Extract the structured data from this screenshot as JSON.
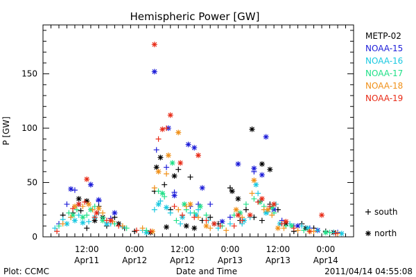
{
  "chart_data": {
    "type": "scatter",
    "title": "Hemispheric Power [GW]",
    "xlabel": "Date and Time",
    "ylabel": "P [GW]",
    "ylim": [
      0,
      195
    ],
    "y_ticks": [
      0,
      50,
      100,
      150
    ],
    "y_minor_step": 10,
    "xlim": [
      "2011-04-11T01:00",
      "2011-04-14T07:00"
    ],
    "x_ticks": [
      {
        "t": "2011-04-11T12:00",
        "line1": "12:00",
        "line2": "Apr11"
      },
      {
        "t": "2011-04-12T00:00",
        "line1": "0:00",
        "line2": "Apr12"
      },
      {
        "t": "2011-04-12T12:00",
        "line1": "12:00",
        "line2": "Apr12"
      },
      {
        "t": "2011-04-13T00:00",
        "line1": "0:00",
        "line2": "Apr13"
      },
      {
        "t": "2011-04-13T12:00",
        "line1": "12:00",
        "line2": "Apr13"
      },
      {
        "t": "2011-04-14T00:00",
        "line1": "0:00",
        "line2": "Apr14"
      }
    ],
    "x_minor_hours": 2,
    "grid": false,
    "legend_position": "right",
    "marker_legend": [
      {
        "symbol": "+",
        "label": "south"
      },
      {
        "symbol": "*",
        "label": "north"
      }
    ],
    "series": [
      {
        "name": "METP-02",
        "color": "#000000",
        "south": [
          [
            "2011-04-11T06:00",
            20
          ],
          [
            "2011-04-11T08:30",
            22
          ],
          [
            "2011-04-11T10:30",
            24
          ],
          [
            "2011-04-11T12:00",
            8
          ],
          [
            "2011-04-11T15:00",
            28
          ],
          [
            "2011-04-11T17:00",
            10
          ],
          [
            "2011-04-11T19:00",
            18
          ],
          [
            "2011-04-11T21:30",
            8
          ],
          [
            "2011-04-12T00:00",
            5
          ],
          [
            "2011-04-12T05:00",
            42
          ],
          [
            "2011-04-12T07:30",
            48
          ],
          [
            "2011-04-12T09:00",
            25
          ],
          [
            "2011-04-12T11:00",
            62
          ],
          [
            "2011-04-12T14:00",
            55
          ],
          [
            "2011-04-12T17:00",
            15
          ],
          [
            "2011-04-12T19:00",
            18
          ],
          [
            "2011-04-12T21:00",
            12
          ],
          [
            "2011-04-13T00:00",
            45
          ],
          [
            "2011-04-13T02:30",
            15
          ],
          [
            "2011-04-13T04:00",
            25
          ],
          [
            "2011-04-13T06:00",
            18
          ],
          [
            "2011-04-13T08:00",
            15
          ],
          [
            "2011-04-13T10:00",
            30
          ],
          [
            "2011-04-13T12:00",
            25
          ],
          [
            "2011-04-13T16:00",
            5
          ],
          [
            "2011-04-13T18:00",
            12
          ],
          [
            "2011-04-13T21:00",
            8
          ],
          [
            "2011-04-14T00:00",
            5
          ]
        ],
        "north": [
          [
            "2011-04-11T10:00",
            35
          ],
          [
            "2011-04-11T12:00",
            33
          ],
          [
            "2011-04-11T14:00",
            15
          ],
          [
            "2011-04-11T16:00",
            18
          ],
          [
            "2011-04-11T20:00",
            12
          ],
          [
            "2011-04-12T04:00",
            4
          ],
          [
            "2011-04-12T05:30",
            64
          ],
          [
            "2011-04-12T06:30",
            73
          ],
          [
            "2011-04-12T08:00",
            9
          ],
          [
            "2011-04-12T10:00",
            56
          ],
          [
            "2011-04-12T13:00",
            10
          ],
          [
            "2011-04-12T15:00",
            8
          ],
          [
            "2011-04-13T00:30",
            42
          ],
          [
            "2011-04-13T02:00",
            35
          ],
          [
            "2011-04-13T05:30",
            99
          ],
          [
            "2011-04-13T08:00",
            67
          ],
          [
            "2011-04-13T10:00",
            62
          ],
          [
            "2011-04-13T14:00",
            12
          ],
          [
            "2011-04-13T19:00",
            8
          ],
          [
            "2011-04-14T02:00",
            4
          ]
        ]
      },
      {
        "name": "NOAA-15",
        "color": "#1c1cd8",
        "south": [
          [
            "2011-04-11T05:00",
            12
          ],
          [
            "2011-04-11T07:00",
            30
          ],
          [
            "2011-04-11T09:00",
            43
          ],
          [
            "2011-04-11T13:00",
            48
          ],
          [
            "2011-04-11T15:00",
            33
          ],
          [
            "2011-04-11T18:00",
            17
          ],
          [
            "2011-04-12T05:30",
            80
          ],
          [
            "2011-04-12T08:00",
            64
          ],
          [
            "2011-04-12T10:00",
            41
          ],
          [
            "2011-04-12T14:00",
            28
          ],
          [
            "2011-04-12T16:00",
            30
          ],
          [
            "2011-04-12T19:00",
            30
          ],
          [
            "2011-04-13T00:00",
            18
          ],
          [
            "2011-04-13T06:00",
            60
          ],
          [
            "2011-04-13T07:30",
            33
          ],
          [
            "2011-04-13T10:00",
            28
          ],
          [
            "2011-04-13T13:00",
            15
          ],
          [
            "2011-04-13T16:00",
            10
          ],
          [
            "2011-04-13T20:00",
            8
          ],
          [
            "2011-04-14T03:00",
            4
          ]
        ],
        "north": [
          [
            "2011-04-11T08:00",
            44
          ],
          [
            "2011-04-11T10:00",
            30
          ],
          [
            "2011-04-11T13:00",
            48
          ],
          [
            "2011-04-11T15:00",
            34
          ],
          [
            "2011-04-11T19:00",
            22
          ],
          [
            "2011-04-12T05:00",
            152
          ],
          [
            "2011-04-12T08:30",
            100
          ],
          [
            "2011-04-12T10:00",
            38
          ],
          [
            "2011-04-12T13:30",
            85
          ],
          [
            "2011-04-12T15:00",
            82
          ],
          [
            "2011-04-12T17:00",
            45
          ],
          [
            "2011-04-12T22:00",
            14
          ],
          [
            "2011-04-13T02:00",
            67
          ],
          [
            "2011-04-13T06:00",
            63
          ],
          [
            "2011-04-13T08:00",
            57
          ],
          [
            "2011-04-13T09:00",
            92
          ],
          [
            "2011-04-13T11:00",
            25
          ],
          [
            "2011-04-13T17:00",
            10
          ],
          [
            "2011-04-13T22:00",
            6
          ]
        ]
      },
      {
        "name": "NOAA-16",
        "color": "#18c8e0",
        "south": [
          [
            "2011-04-11T04:00",
            8
          ],
          [
            "2011-04-11T06:00",
            16
          ],
          [
            "2011-04-11T08:00",
            18
          ],
          [
            "2011-04-11T10:00",
            20
          ],
          [
            "2011-04-11T12:30",
            14
          ],
          [
            "2011-04-11T15:00",
            22
          ],
          [
            "2011-04-11T18:00",
            12
          ],
          [
            "2011-04-11T21:00",
            9
          ],
          [
            "2011-04-12T02:00",
            6
          ],
          [
            "2011-04-12T05:00",
            25
          ],
          [
            "2011-04-12T06:30",
            33
          ],
          [
            "2011-04-12T09:00",
            22
          ],
          [
            "2011-04-12T11:30",
            12
          ],
          [
            "2011-04-12T14:00",
            22
          ],
          [
            "2011-04-12T16:00",
            25
          ],
          [
            "2011-04-12T18:30",
            15
          ],
          [
            "2011-04-12T21:00",
            8
          ],
          [
            "2011-04-13T00:00",
            12
          ],
          [
            "2011-04-13T03:00",
            12
          ],
          [
            "2011-04-13T05:00",
            18
          ],
          [
            "2011-04-13T07:00",
            40
          ],
          [
            "2011-04-13T09:30",
            23
          ],
          [
            "2011-04-13T11:30",
            30
          ],
          [
            "2011-04-13T15:00",
            12
          ],
          [
            "2011-04-13T18:00",
            10
          ],
          [
            "2011-04-13T22:00",
            6
          ],
          [
            "2011-04-14T02:00",
            4
          ]
        ],
        "north": [
          [
            "2011-04-11T07:00",
            12
          ],
          [
            "2011-04-11T09:00",
            15
          ],
          [
            "2011-04-11T11:00",
            13
          ],
          [
            "2011-04-11T14:00",
            18
          ],
          [
            "2011-04-11T17:00",
            12
          ],
          [
            "2011-04-12T03:00",
            4
          ],
          [
            "2011-04-12T06:00",
            30
          ],
          [
            "2011-04-12T08:00",
            27
          ],
          [
            "2011-04-12T12:00",
            18
          ],
          [
            "2011-04-12T15:30",
            20
          ],
          [
            "2011-04-12T20:00",
            12
          ],
          [
            "2011-04-13T03:30",
            15
          ],
          [
            "2011-04-13T06:30",
            48
          ],
          [
            "2011-04-13T09:00",
            22
          ],
          [
            "2011-04-13T12:30",
            12
          ],
          [
            "2011-04-13T19:30",
            8
          ],
          [
            "2011-04-14T04:00",
            3
          ]
        ]
      },
      {
        "name": "NOAA-17",
        "color": "#20e088",
        "south": [
          [
            "2011-04-11T05:00",
            10
          ],
          [
            "2011-04-11T07:30",
            22
          ],
          [
            "2011-04-11T09:30",
            25
          ],
          [
            "2011-04-11T12:00",
            20
          ],
          [
            "2011-04-11T14:00",
            28
          ],
          [
            "2011-04-11T16:00",
            18
          ],
          [
            "2011-04-11T19:00",
            12
          ],
          [
            "2011-04-11T22:00",
            8
          ],
          [
            "2011-04-12T03:00",
            6
          ],
          [
            "2011-04-12T06:00",
            42
          ],
          [
            "2011-04-12T07:30",
            37
          ],
          [
            "2011-04-12T10:30",
            15
          ],
          [
            "2011-04-12T13:00",
            25
          ],
          [
            "2011-04-12T15:00",
            22
          ],
          [
            "2011-04-12T18:00",
            20
          ],
          [
            "2011-04-12T22:00",
            10
          ],
          [
            "2011-04-13T01:00",
            20
          ],
          [
            "2011-04-13T04:00",
            30
          ],
          [
            "2011-04-13T06:00",
            35
          ],
          [
            "2011-04-13T08:30",
            28
          ],
          [
            "2011-04-13T11:00",
            22
          ],
          [
            "2011-04-13T14:00",
            10
          ],
          [
            "2011-04-13T18:30",
            6
          ],
          [
            "2011-04-14T01:00",
            4
          ]
        ],
        "north": [
          [
            "2011-04-11T08:30",
            20
          ],
          [
            "2011-04-11T11:00",
            18
          ],
          [
            "2011-04-11T13:00",
            25
          ],
          [
            "2011-04-11T16:00",
            15
          ],
          [
            "2011-04-12T07:00",
            40
          ],
          [
            "2011-04-12T09:30",
            68
          ],
          [
            "2011-04-12T12:30",
            30
          ],
          [
            "2011-04-12T16:30",
            28
          ],
          [
            "2011-04-13T02:30",
            22
          ],
          [
            "2011-04-13T07:30",
            32
          ],
          [
            "2011-04-13T10:30",
            27
          ],
          [
            "2011-04-13T15:30",
            10
          ],
          [
            "2011-04-14T00:00",
            4
          ]
        ]
      },
      {
        "name": "NOAA-18",
        "color": "#f09018",
        "south": [
          [
            "2011-04-11T06:00",
            12
          ],
          [
            "2011-04-11T08:00",
            18
          ],
          [
            "2011-04-11T11:00",
            28
          ],
          [
            "2011-04-11T13:30",
            25
          ],
          [
            "2011-04-11T16:00",
            22
          ],
          [
            "2011-04-11T18:30",
            14
          ],
          [
            "2011-04-11T21:00",
            10
          ],
          [
            "2011-04-12T02:00",
            8
          ],
          [
            "2011-04-12T05:00",
            45
          ],
          [
            "2011-04-12T08:00",
            58
          ],
          [
            "2011-04-12T11:00",
            25
          ],
          [
            "2011-04-12T13:00",
            28
          ],
          [
            "2011-04-12T16:00",
            18
          ],
          [
            "2011-04-12T19:00",
            8
          ],
          [
            "2011-04-12T23:00",
            6
          ],
          [
            "2011-04-13T03:00",
            18
          ],
          [
            "2011-04-13T05:30",
            40
          ],
          [
            "2011-04-13T08:30",
            25
          ],
          [
            "2011-04-13T10:30",
            20
          ],
          [
            "2011-04-13T13:30",
            8
          ],
          [
            "2011-04-13T17:00",
            6
          ],
          [
            "2011-04-13T21:00",
            5
          ],
          [
            "2011-04-14T03:00",
            3
          ]
        ],
        "north": [
          [
            "2011-04-11T09:00",
            28
          ],
          [
            "2011-04-11T12:30",
            30
          ],
          [
            "2011-04-11T15:00",
            26
          ],
          [
            "2011-04-12T04:30",
            5
          ],
          [
            "2011-04-12T06:00",
            60
          ],
          [
            "2011-04-12T08:30",
            75
          ],
          [
            "2011-04-12T11:00",
            96
          ],
          [
            "2011-04-12T14:00",
            30
          ],
          [
            "2011-04-12T18:00",
            10
          ],
          [
            "2011-04-13T01:30",
            25
          ],
          [
            "2011-04-13T06:00",
            52
          ],
          [
            "2011-04-13T09:30",
            25
          ],
          [
            "2011-04-13T12:00",
            8
          ],
          [
            "2011-04-13T20:00",
            5
          ]
        ]
      },
      {
        "name": "NOAA-19",
        "color": "#e82a16",
        "south": [
          [
            "2011-04-11T04:30",
            5
          ],
          [
            "2011-04-11T08:30",
            26
          ],
          [
            "2011-04-11T11:30",
            32
          ],
          [
            "2011-04-11T14:00",
            18
          ],
          [
            "2011-04-11T17:00",
            15
          ],
          [
            "2011-04-11T20:00",
            10
          ],
          [
            "2011-04-12T00:30",
            6
          ],
          [
            "2011-04-12T04:00",
            5
          ],
          [
            "2011-04-12T06:00",
            90
          ],
          [
            "2011-04-12T08:00",
            100
          ],
          [
            "2011-04-12T10:00",
            28
          ],
          [
            "2011-04-12T12:00",
            20
          ],
          [
            "2011-04-12T15:00",
            18
          ],
          [
            "2011-04-12T18:00",
            15
          ],
          [
            "2011-04-12T21:30",
            10
          ],
          [
            "2011-04-13T01:00",
            10
          ],
          [
            "2011-04-13T03:00",
            15
          ],
          [
            "2011-04-13T07:00",
            32
          ],
          [
            "2011-04-13T10:00",
            28
          ],
          [
            "2011-04-13T13:00",
            12
          ],
          [
            "2011-04-13T16:00",
            8
          ],
          [
            "2011-04-13T20:00",
            5
          ],
          [
            "2011-04-14T02:30",
            3
          ]
        ],
        "north": [
          [
            "2011-04-11T10:00",
            30
          ],
          [
            "2011-04-11T12:00",
            53
          ],
          [
            "2011-04-11T14:30",
            22
          ],
          [
            "2011-04-11T18:00",
            15
          ],
          [
            "2011-04-12T05:00",
            177
          ],
          [
            "2011-04-12T07:00",
            99
          ],
          [
            "2011-04-12T09:00",
            112
          ],
          [
            "2011-04-12T11:30",
            68
          ],
          [
            "2011-04-12T16:00",
            75
          ],
          [
            "2011-04-12T20:00",
            12
          ],
          [
            "2011-04-13T02:00",
            20
          ],
          [
            "2011-04-13T05:00",
            20
          ],
          [
            "2011-04-13T08:00",
            35
          ],
          [
            "2011-04-13T11:00",
            30
          ],
          [
            "2011-04-13T14:00",
            14
          ],
          [
            "2011-04-13T23:00",
            20
          ]
        ]
      }
    ]
  },
  "footer": {
    "left": "Plot: CCMC",
    "right": "2011/04/14 04:55:08"
  }
}
